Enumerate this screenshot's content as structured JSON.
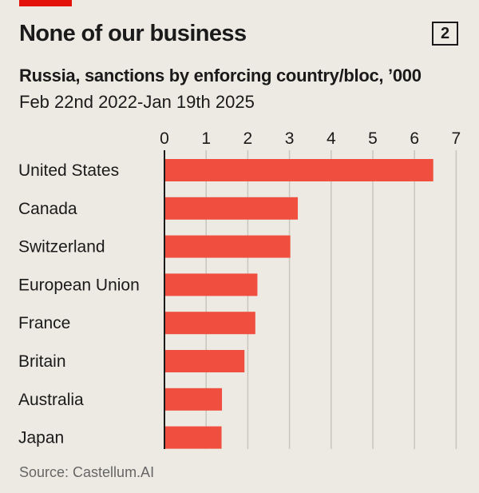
{
  "header": {
    "title": "None of our business",
    "badge": "2",
    "subtitle": "Russia, sanctions by enforcing country/bloc, ’000",
    "date_range": "Feb 22nd 2022-Jan 19th 2025"
  },
  "source": "Source: Castellum.AI",
  "colors": {
    "bar": "#f04e3e",
    "accent_tag": "#e3120b",
    "gridline": "#c9c6bd",
    "background": "#eceae2"
  },
  "chart_data": {
    "type": "bar",
    "orientation": "horizontal",
    "title": "None of our business",
    "subtitle": "Russia, sanctions by enforcing country/bloc, ’000",
    "categories": [
      "United States",
      "Canada",
      "Switzerland",
      "European Union",
      "France",
      "Britain",
      "Australia",
      "Japan"
    ],
    "values": [
      6.45,
      3.2,
      3.02,
      2.23,
      2.18,
      1.92,
      1.38,
      1.37
    ],
    "xlim": [
      0,
      7
    ],
    "xticks": [
      "0",
      "1",
      "2",
      "3",
      "4",
      "5",
      "6",
      "7"
    ],
    "grid": true,
    "legend": "none"
  }
}
